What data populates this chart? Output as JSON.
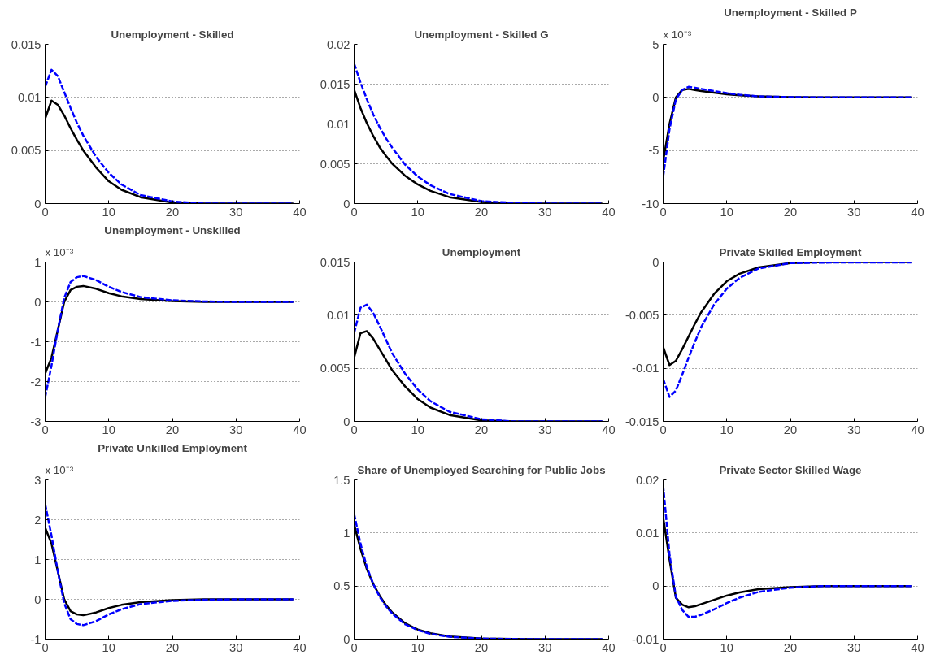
{
  "chart_data": [
    {
      "type": "line",
      "title": "Unemployment - Skilled",
      "x": [
        0,
        1,
        2,
        3,
        4,
        5,
        6,
        8,
        10,
        12,
        15,
        20,
        25,
        30,
        39
      ],
      "xlim": [
        0,
        40
      ],
      "xticks": [
        0,
        10,
        20,
        30,
        40
      ],
      "ylim": [
        0,
        0.015
      ],
      "yticks": [
        0,
        0.005,
        0.01,
        0.015
      ],
      "grid": "y",
      "series": [
        {
          "color": "#000000",
          "line_style": "solid",
          "values": [
            0.008,
            0.0097,
            0.0093,
            0.0083,
            0.0071,
            0.006,
            0.005,
            0.0034,
            0.0021,
            0.0013,
            0.0006,
            0.0001,
            0,
            0,
            0
          ]
        },
        {
          "color": "#0000ff",
          "line_style": "dashed",
          "values": [
            0.011,
            0.0126,
            0.012,
            0.0105,
            0.009,
            0.0076,
            0.0064,
            0.0044,
            0.0029,
            0.0018,
            0.0008,
            0.0002,
            0,
            0,
            0
          ]
        }
      ]
    },
    {
      "type": "line",
      "title": "Unemployment - Skilled G",
      "x": [
        0,
        1,
        2,
        3,
        4,
        5,
        6,
        8,
        10,
        12,
        15,
        20,
        25,
        30,
        39
      ],
      "xlim": [
        0,
        40
      ],
      "xticks": [
        0,
        10,
        20,
        30,
        40
      ],
      "ylim": [
        0,
        0.02
      ],
      "yticks": [
        0,
        0.005,
        0.01,
        0.015,
        0.02
      ],
      "grid": "y",
      "series": [
        {
          "color": "#000000",
          "line_style": "solid",
          "values": [
            0.0143,
            0.012,
            0.0101,
            0.0085,
            0.0071,
            0.006,
            0.005,
            0.0035,
            0.0024,
            0.0016,
            0.0008,
            0.0002,
            0,
            0,
            0
          ]
        },
        {
          "color": "#0000ff",
          "line_style": "dashed",
          "values": [
            0.0176,
            0.0152,
            0.0131,
            0.0112,
            0.0096,
            0.0082,
            0.007,
            0.0049,
            0.0034,
            0.0023,
            0.0012,
            0.0003,
            0.0001,
            0,
            0
          ]
        }
      ]
    },
    {
      "type": "line",
      "title": "Unemployment - Skilled P",
      "annotations": [
        "x 10⁻³"
      ],
      "x": [
        0,
        1,
        2,
        3,
        4,
        5,
        6,
        8,
        10,
        12,
        15,
        20,
        25,
        30,
        39
      ],
      "xlim": [
        0,
        40
      ],
      "xticks": [
        0,
        10,
        20,
        30,
        40
      ],
      "ylim": [
        -10,
        5
      ],
      "yticks": [
        -10,
        -5,
        0,
        5
      ],
      "grid": "y",
      "series": [
        {
          "color": "#000000",
          "line_style": "solid",
          "values": [
            -6,
            -2.5,
            0,
            0.7,
            0.8,
            0.7,
            0.6,
            0.45,
            0.3,
            0.2,
            0.1,
            0.02,
            0,
            0,
            0
          ]
        },
        {
          "color": "#0000ff",
          "line_style": "dashed",
          "values": [
            -7.5,
            -3,
            -0.2,
            0.7,
            1.0,
            0.9,
            0.8,
            0.6,
            0.4,
            0.25,
            0.1,
            0.03,
            0,
            0,
            0
          ]
        }
      ]
    },
    {
      "type": "line",
      "title": "Unemployment - Unskilled",
      "annotations": [
        "x 10⁻³"
      ],
      "x": [
        0,
        1,
        2,
        3,
        4,
        5,
        6,
        8,
        10,
        12,
        15,
        20,
        25,
        30,
        39
      ],
      "xlim": [
        0,
        40
      ],
      "xticks": [
        0,
        10,
        20,
        30,
        40
      ],
      "ylim": [
        -3,
        1
      ],
      "yticks": [
        -3,
        -2,
        -1,
        0,
        1
      ],
      "grid": "y",
      "series": [
        {
          "color": "#000000",
          "line_style": "solid",
          "values": [
            -1.8,
            -1.4,
            -0.7,
            0,
            0.3,
            0.38,
            0.4,
            0.33,
            0.22,
            0.14,
            0.07,
            0.02,
            0,
            0,
            0
          ]
        },
        {
          "color": "#0000ff",
          "line_style": "dashed",
          "values": [
            -2.4,
            -1.6,
            -0.7,
            0.1,
            0.5,
            0.62,
            0.65,
            0.55,
            0.38,
            0.25,
            0.12,
            0.04,
            0.01,
            0,
            0
          ]
        }
      ]
    },
    {
      "type": "line",
      "title": "Unemployment",
      "x": [
        0,
        1,
        2,
        3,
        4,
        5,
        6,
        8,
        10,
        12,
        15,
        20,
        25,
        30,
        39
      ],
      "xlim": [
        0,
        40
      ],
      "xticks": [
        0,
        10,
        20,
        30,
        40
      ],
      "ylim": [
        0,
        0.015
      ],
      "yticks": [
        0,
        0.005,
        0.01,
        0.015
      ],
      "grid": "y",
      "series": [
        {
          "color": "#000000",
          "line_style": "solid",
          "values": [
            0.006,
            0.0083,
            0.0085,
            0.0078,
            0.0068,
            0.0058,
            0.0048,
            0.0033,
            0.0021,
            0.0013,
            0.0006,
            0.0001,
            0,
            0,
            0
          ]
        },
        {
          "color": "#0000ff",
          "line_style": "dashed",
          "values": [
            0.0083,
            0.0107,
            0.011,
            0.0102,
            0.009,
            0.0077,
            0.0064,
            0.0045,
            0.003,
            0.0019,
            0.0009,
            0.0002,
            0,
            0,
            0
          ]
        }
      ]
    },
    {
      "type": "line",
      "title": "Private Skilled Employment",
      "x": [
        0,
        1,
        2,
        3,
        4,
        5,
        6,
        8,
        10,
        12,
        15,
        20,
        25,
        30,
        39
      ],
      "xlim": [
        0,
        40
      ],
      "xticks": [
        0,
        10,
        20,
        30,
        40
      ],
      "ylim": [
        -0.015,
        0
      ],
      "yticks": [
        -0.015,
        -0.01,
        -0.005,
        0
      ],
      "grid": "y",
      "series": [
        {
          "color": "#000000",
          "line_style": "solid",
          "values": [
            -0.008,
            -0.0097,
            -0.0093,
            -0.0082,
            -0.007,
            -0.0058,
            -0.0047,
            -0.003,
            -0.0018,
            -0.0011,
            -0.0005,
            -0.0001,
            0,
            0,
            0
          ]
        },
        {
          "color": "#0000ff",
          "line_style": "dashed",
          "values": [
            -0.011,
            -0.0127,
            -0.0121,
            -0.0106,
            -0.009,
            -0.0075,
            -0.0061,
            -0.004,
            -0.0025,
            -0.0015,
            -0.0006,
            -0.0001,
            -5e-05,
            -4e-05,
            -3e-05
          ]
        }
      ]
    },
    {
      "type": "line",
      "title": "Private Unkilled Employment",
      "annotations": [
        "x 10⁻³"
      ],
      "x": [
        0,
        1,
        2,
        3,
        4,
        5,
        6,
        8,
        10,
        12,
        15,
        20,
        25,
        30,
        39
      ],
      "xlim": [
        0,
        40
      ],
      "xticks": [
        0,
        10,
        20,
        30,
        40
      ],
      "ylim": [
        -1,
        3
      ],
      "yticks": [
        -1,
        0,
        1,
        2,
        3
      ],
      "grid": "y",
      "series": [
        {
          "color": "#000000",
          "line_style": "solid",
          "values": [
            1.8,
            1.4,
            0.7,
            0,
            -0.3,
            -0.38,
            -0.4,
            -0.33,
            -0.22,
            -0.14,
            -0.07,
            -0.02,
            0,
            0,
            0
          ]
        },
        {
          "color": "#0000ff",
          "line_style": "dashed",
          "values": [
            2.4,
            1.6,
            0.7,
            -0.1,
            -0.5,
            -0.62,
            -0.65,
            -0.55,
            -0.38,
            -0.25,
            -0.12,
            -0.04,
            -0.01,
            0,
            0
          ]
        }
      ]
    },
    {
      "type": "line",
      "title": "Share of Unemployed Searching for Public Jobs",
      "x": [
        0,
        1,
        2,
        3,
        4,
        5,
        6,
        8,
        10,
        12,
        15,
        20,
        25,
        30,
        39
      ],
      "xlim": [
        0,
        40
      ],
      "xticks": [
        0,
        10,
        20,
        30,
        40
      ],
      "ylim": [
        0,
        1.5
      ],
      "yticks": [
        0,
        0.5,
        1,
        1.5
      ],
      "grid": "y",
      "series": [
        {
          "color": "#000000",
          "line_style": "solid",
          "values": [
            1.08,
            0.85,
            0.66,
            0.52,
            0.41,
            0.32,
            0.25,
            0.15,
            0.09,
            0.055,
            0.025,
            0.006,
            0.002,
            0,
            0
          ]
        },
        {
          "color": "#0000ff",
          "line_style": "dashed",
          "values": [
            1.18,
            0.9,
            0.68,
            0.52,
            0.4,
            0.31,
            0.24,
            0.14,
            0.085,
            0.05,
            0.022,
            0.005,
            0.001,
            0,
            0
          ]
        }
      ]
    },
    {
      "type": "line",
      "title": "Private Sector Skilled Wage",
      "x": [
        0,
        1,
        2,
        3,
        4,
        5,
        6,
        8,
        10,
        12,
        15,
        20,
        25,
        30,
        39
      ],
      "xlim": [
        0,
        40
      ],
      "xticks": [
        0,
        10,
        20,
        30,
        40
      ],
      "ylim": [
        -0.01,
        0.02
      ],
      "yticks": [
        -0.01,
        0,
        0.01,
        0.02
      ],
      "grid": "y",
      "series": [
        {
          "color": "#000000",
          "line_style": "solid",
          "values": [
            0.013,
            0.005,
            -0.0022,
            -0.0035,
            -0.004,
            -0.0038,
            -0.0034,
            -0.0026,
            -0.0018,
            -0.0012,
            -0.0006,
            -0.0002,
            0,
            0,
            0
          ]
        },
        {
          "color": "#0000ff",
          "line_style": "dashed",
          "values": [
            0.019,
            0.006,
            -0.002,
            -0.0045,
            -0.0058,
            -0.0058,
            -0.0054,
            -0.0044,
            -0.0032,
            -0.0022,
            -0.0011,
            -0.0003,
            0,
            0,
            0
          ]
        }
      ]
    }
  ]
}
